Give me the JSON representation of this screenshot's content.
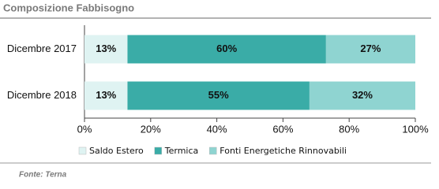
{
  "chart_data": {
    "type": "stacked-barh",
    "title": "Composizione Fabbisogno",
    "source": "Fonte: Terna",
    "categories": [
      "Dicembre 2017",
      "Dicembre 2018"
    ],
    "series": [
      {
        "name": "Saldo Estero",
        "color": "#dff3f2",
        "values": [
          13,
          13
        ],
        "value_labels": [
          "13%",
          "13%"
        ]
      },
      {
        "name": "Termica",
        "color": "#3aaca7",
        "values": [
          60,
          55
        ],
        "value_labels": [
          "60%",
          "55%"
        ]
      },
      {
        "name": "Fonti Energetiche Rinnovabili",
        "color": "#8fd4d1",
        "values": [
          27,
          32
        ],
        "value_labels": [
          "27%",
          "32%"
        ]
      }
    ],
    "xlim": [
      0,
      100
    ],
    "xticks": [
      {
        "value": 0,
        "label": "0%"
      },
      {
        "value": 20,
        "label": "20%"
      },
      {
        "value": 40,
        "label": "40%"
      },
      {
        "value": 60,
        "label": "60%"
      },
      {
        "value": 80,
        "label": "80%"
      },
      {
        "value": 100,
        "label": "100%"
      }
    ],
    "legend": "bottom"
  }
}
